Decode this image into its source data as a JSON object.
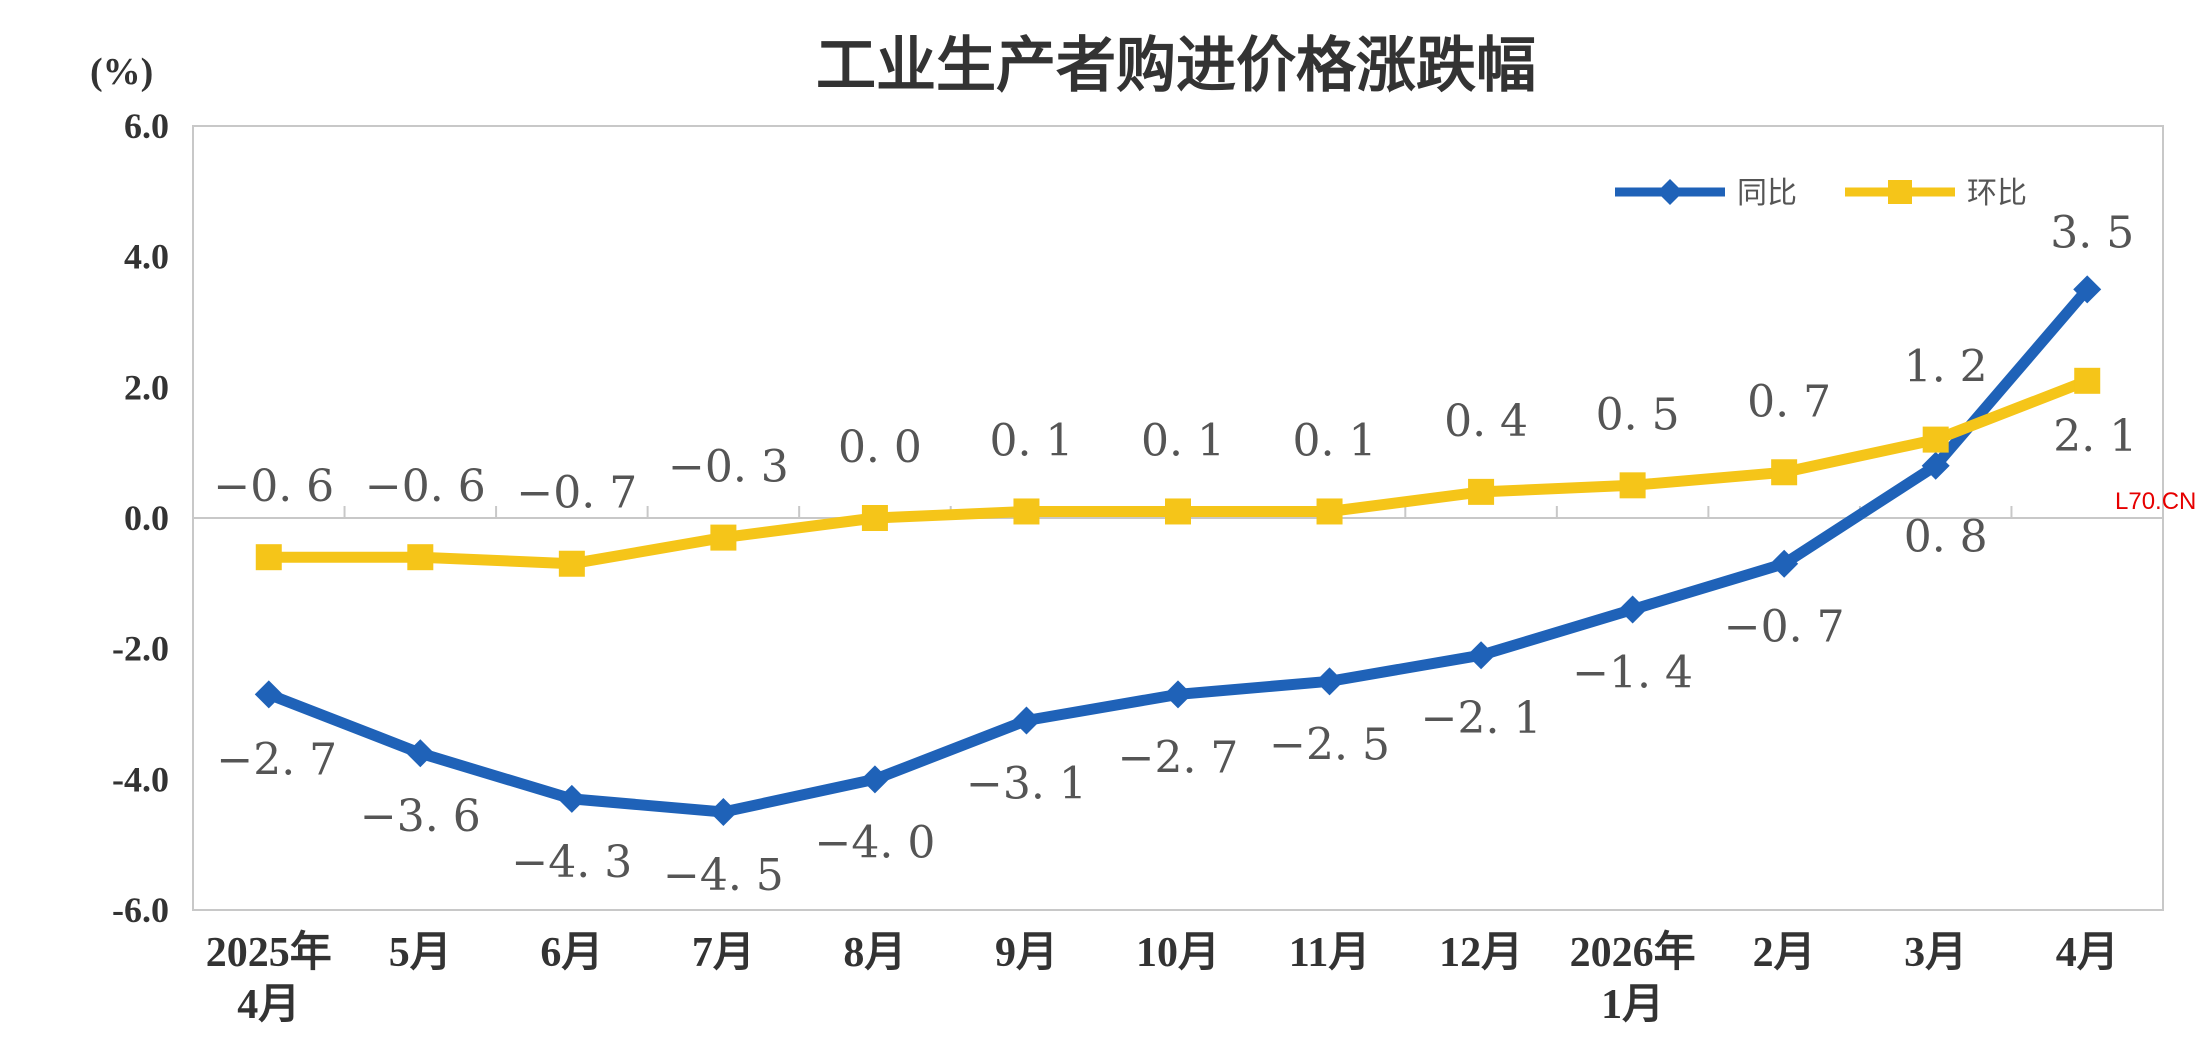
{
  "watermark": "L70.CN",
  "chart_data": {
    "type": "line",
    "title": "工业生产者购进价格涨跌幅",
    "ylabel": "(%)",
    "xlabel": "",
    "ylim": [
      -6.0,
      6.0
    ],
    "yticks": [
      "6.0",
      "4.0",
      "2.0",
      "0.0",
      "-2.0",
      "-4.0",
      "-6.0"
    ],
    "categories": [
      [
        "2025年",
        "4月"
      ],
      [
        "5月"
      ],
      [
        "6月"
      ],
      [
        "7月"
      ],
      [
        "8月"
      ],
      [
        "9月"
      ],
      [
        "10月"
      ],
      [
        "11月"
      ],
      [
        "12月"
      ],
      [
        "2026年",
        "1月"
      ],
      [
        "2月"
      ],
      [
        "3月"
      ],
      [
        "4月"
      ]
    ],
    "legend_position": "top-right",
    "grid": false,
    "series": [
      {
        "name": "同比",
        "color": "#1f62b8",
        "marker": "diamond",
        "values": [
          -2.7,
          -3.6,
          -4.3,
          -4.5,
          -4.0,
          -3.1,
          -2.7,
          -2.5,
          -2.1,
          -1.4,
          -0.7,
          0.8,
          3.5
        ],
        "labels": [
          "-2.7",
          "-3.6",
          "-4.3",
          "-4.5",
          "-4.0",
          "-3.1",
          "-2.7",
          "-2.5",
          "-2.1",
          "-1.4",
          "-0.7",
          "0.8",
          "3.5"
        ]
      },
      {
        "name": "环比",
        "color": "#f5c519",
        "marker": "square",
        "values": [
          -0.6,
          -0.6,
          -0.7,
          -0.3,
          0.0,
          0.1,
          0.1,
          0.1,
          0.4,
          0.5,
          0.7,
          1.2,
          2.1
        ],
        "labels": [
          "-0.6",
          "-0.6",
          "-0.7",
          "-0.3",
          "0.0",
          "0.1",
          "0.1",
          "0.1",
          "0.4",
          "0.5",
          "0.7",
          "1.2",
          "2.1"
        ]
      }
    ]
  }
}
